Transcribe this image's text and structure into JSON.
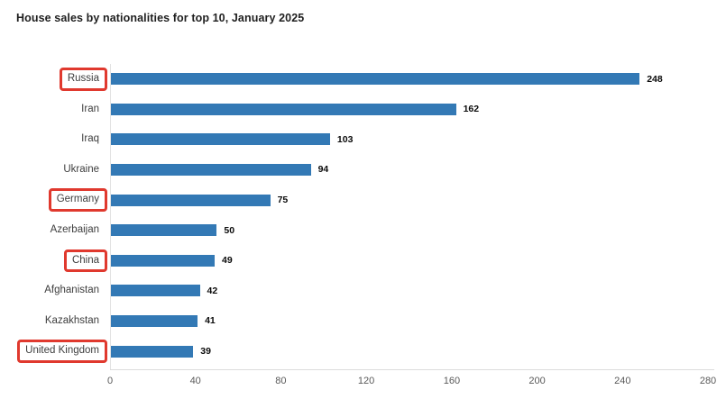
{
  "title": "House sales by nationalities for top 10, January 2025",
  "colors": {
    "bar": "#3379b5",
    "highlight_box": "#e0392e",
    "axis_line": "#dcdcdc",
    "title_text": "#1f1f1f",
    "category_text": "#3d3d3d",
    "tick_text": "#595959",
    "value_text": "#0a0a0a"
  },
  "chart_data": {
    "type": "bar",
    "orientation": "horizontal",
    "title": "House sales by nationalities for top 10, January 2025",
    "categories": [
      "Russia",
      "Iran",
      "Iraq",
      "Ukraine",
      "Germany",
      "Azerbaijan",
      "China",
      "Afghanistan",
      "Kazakhstan",
      "United Kingdom"
    ],
    "values": [
      248,
      162,
      103,
      94,
      75,
      50,
      49,
      42,
      41,
      39
    ],
    "highlighted_categories": [
      "Russia",
      "Germany",
      "China",
      "United Kingdom"
    ],
    "value_labels_shown": true,
    "xlabel": "",
    "ylabel": "",
    "xlim": [
      0,
      280
    ],
    "xticks": [
      0,
      40,
      80,
      120,
      160,
      200,
      240,
      280
    ],
    "grid": false,
    "legend": "none"
  }
}
